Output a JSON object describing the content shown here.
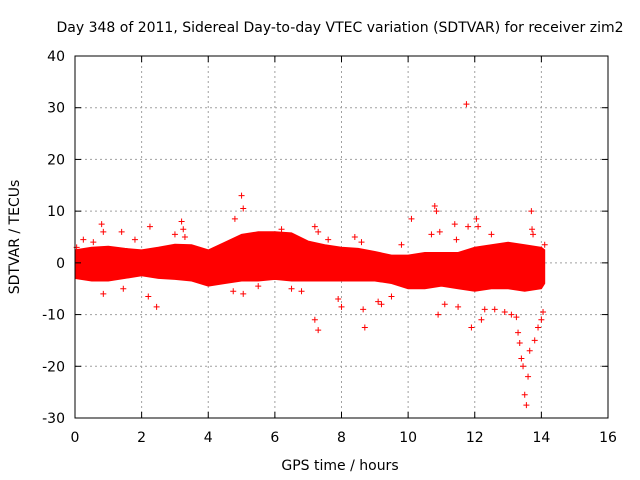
{
  "chart_data": {
    "type": "scatter",
    "title": "Day 348 of 2011, Sidereal Day-to-day VTEC variation (SDTVAR) for receiver zim2",
    "xlabel": "GPS time / hours",
    "ylabel": "SDTVAR / TECUs",
    "xlim": [
      0,
      16
    ],
    "ylim": [
      -30,
      40
    ],
    "xticks": [
      0,
      2,
      4,
      6,
      8,
      10,
      12,
      14,
      16
    ],
    "yticks": [
      -30,
      -20,
      -10,
      0,
      10,
      20,
      30,
      40
    ],
    "grid": true,
    "marker": "+",
    "color": "#ff0000",
    "band": {
      "x": [
        0.0,
        0.5,
        1.0,
        1.5,
        2.0,
        2.5,
        3.0,
        3.5,
        4.0,
        4.5,
        5.0,
        5.5,
        6.0,
        6.5,
        7.0,
        7.5,
        8.0,
        8.5,
        9.0,
        9.5,
        10.0,
        10.5,
        11.0,
        11.5,
        12.0,
        12.5,
        13.0,
        13.5,
        14.0,
        14.1
      ],
      "upper": [
        2.5,
        3.0,
        3.2,
        2.8,
        2.5,
        3.0,
        3.6,
        3.5,
        2.5,
        4.0,
        5.5,
        6.0,
        6.0,
        5.8,
        4.2,
        3.5,
        3.0,
        2.8,
        2.2,
        1.5,
        1.5,
        2.0,
        2.0,
        2.0,
        3.0,
        3.5,
        4.0,
        3.5,
        3.0,
        2.5
      ],
      "lower": [
        -3.0,
        -3.5,
        -3.5,
        -3.0,
        -2.5,
        -3.0,
        -3.2,
        -3.5,
        -4.5,
        -4.0,
        -3.5,
        -3.5,
        -3.2,
        -3.5,
        -3.5,
        -3.5,
        -3.5,
        -3.5,
        -3.5,
        -4.0,
        -5.0,
        -5.0,
        -4.5,
        -5.0,
        -5.5,
        -5.0,
        -5.0,
        -5.5,
        -5.0,
        -4.0
      ]
    },
    "points": [
      {
        "x": 0.05,
        "y": 3.0
      },
      {
        "x": 0.25,
        "y": 4.5
      },
      {
        "x": 0.55,
        "y": 4.0
      },
      {
        "x": 0.8,
        "y": 7.5
      },
      {
        "x": 0.85,
        "y": 6.0
      },
      {
        "x": 0.85,
        "y": -6.0
      },
      {
        "x": 1.4,
        "y": 6.0
      },
      {
        "x": 1.45,
        "y": -5.0
      },
      {
        "x": 1.8,
        "y": 4.5
      },
      {
        "x": 2.25,
        "y": 7.0
      },
      {
        "x": 2.2,
        "y": -6.5
      },
      {
        "x": 2.45,
        "y": -8.5
      },
      {
        "x": 3.0,
        "y": 5.5
      },
      {
        "x": 3.2,
        "y": 8.0
      },
      {
        "x": 3.25,
        "y": 6.5
      },
      {
        "x": 3.3,
        "y": 5.0
      },
      {
        "x": 4.8,
        "y": 8.5
      },
      {
        "x": 4.75,
        "y": -5.5
      },
      {
        "x": 5.0,
        "y": 13.0
      },
      {
        "x": 5.05,
        "y": 10.5
      },
      {
        "x": 5.05,
        "y": -6.0
      },
      {
        "x": 5.5,
        "y": -4.5
      },
      {
        "x": 6.2,
        "y": 6.5
      },
      {
        "x": 6.5,
        "y": -5.0
      },
      {
        "x": 6.8,
        "y": -5.5
      },
      {
        "x": 7.2,
        "y": 7.0
      },
      {
        "x": 7.3,
        "y": 6.0
      },
      {
        "x": 7.3,
        "y": -13.0
      },
      {
        "x": 7.2,
        "y": -11.0
      },
      {
        "x": 7.6,
        "y": 4.5
      },
      {
        "x": 7.9,
        "y": -7.0
      },
      {
        "x": 8.0,
        "y": -8.5
      },
      {
        "x": 8.4,
        "y": 5.0
      },
      {
        "x": 8.6,
        "y": 4.0
      },
      {
        "x": 8.7,
        "y": -12.5
      },
      {
        "x": 8.65,
        "y": -9.0
      },
      {
        "x": 9.1,
        "y": -7.5
      },
      {
        "x": 9.2,
        "y": -8.0
      },
      {
        "x": 9.5,
        "y": -6.5
      },
      {
        "x": 9.8,
        "y": 3.5
      },
      {
        "x": 10.1,
        "y": 8.5
      },
      {
        "x": 10.7,
        "y": 5.5
      },
      {
        "x": 10.8,
        "y": 11.0
      },
      {
        "x": 10.85,
        "y": 10.0
      },
      {
        "x": 10.9,
        "y": -10.0
      },
      {
        "x": 10.95,
        "y": 6.0
      },
      {
        "x": 11.1,
        "y": -8.0
      },
      {
        "x": 11.4,
        "y": 7.5
      },
      {
        "x": 11.45,
        "y": 4.5
      },
      {
        "x": 11.5,
        "y": -8.5
      },
      {
        "x": 11.75,
        "y": 30.7
      },
      {
        "x": 11.8,
        "y": 7.0
      },
      {
        "x": 11.9,
        "y": -12.5
      },
      {
        "x": 12.05,
        "y": 8.5
      },
      {
        "x": 12.1,
        "y": 7.0
      },
      {
        "x": 12.2,
        "y": -11.0
      },
      {
        "x": 12.3,
        "y": -9.0
      },
      {
        "x": 12.5,
        "y": 5.5
      },
      {
        "x": 12.6,
        "y": -9.0
      },
      {
        "x": 12.9,
        "y": -9.5
      },
      {
        "x": 13.1,
        "y": -10.0
      },
      {
        "x": 13.25,
        "y": -10.5
      },
      {
        "x": 13.3,
        "y": -13.5
      },
      {
        "x": 13.35,
        "y": -15.5
      },
      {
        "x": 13.4,
        "y": -18.5
      },
      {
        "x": 13.45,
        "y": -20.0
      },
      {
        "x": 13.5,
        "y": -25.5
      },
      {
        "x": 13.55,
        "y": -27.5
      },
      {
        "x": 13.6,
        "y": -22.0
      },
      {
        "x": 13.65,
        "y": -17.0
      },
      {
        "x": 13.7,
        "y": 10.0
      },
      {
        "x": 13.72,
        "y": 6.5
      },
      {
        "x": 13.75,
        "y": 5.5
      },
      {
        "x": 13.8,
        "y": -15.0
      },
      {
        "x": 13.9,
        "y": -12.5
      },
      {
        "x": 14.0,
        "y": -11.0
      },
      {
        "x": 14.05,
        "y": -9.5
      },
      {
        "x": 14.1,
        "y": 3.5
      }
    ]
  }
}
